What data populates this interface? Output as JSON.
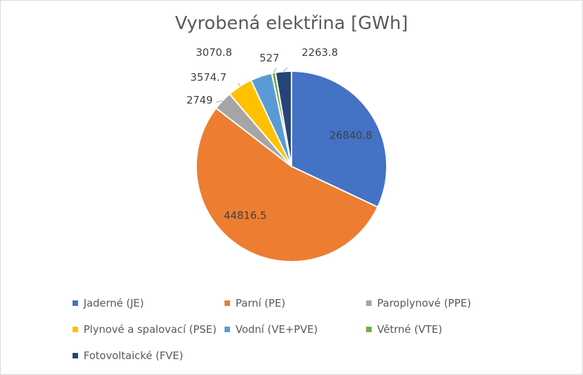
{
  "chart_data": {
    "type": "pie",
    "title": "Vyrobená elektřina [GWh]",
    "categories": [
      "Jaderné (JE)",
      "Parní (PE)",
      "Paroplynové (PPE)",
      "Plynové a spalovací (PSE)",
      "Vodní (VE+PVE)",
      "Větrné (VTE)",
      "Fotovoltaické (FVE)"
    ],
    "values": [
      26840.8,
      44816.5,
      2749,
      3574.7,
      3070.8,
      527,
      2263.8
    ],
    "data_labels": [
      "26840.8",
      "44816.5",
      "2749",
      "3574.7",
      "3070.8",
      "527",
      "2263.8"
    ],
    "colors": [
      "#4472c4",
      "#ed7d31",
      "#a5a5a5",
      "#ffc000",
      "#5b9bd5",
      "#70ad47",
      "#264478"
    ],
    "legend_position": "bottom"
  }
}
